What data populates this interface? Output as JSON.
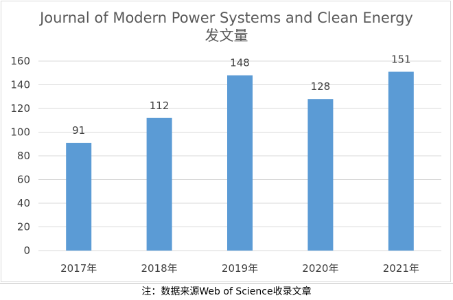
{
  "chart_data": {
    "type": "bar",
    "title": "Journal of Modern Power Systems and Clean Energy",
    "subtitle": "发文量",
    "categories": [
      "2017年",
      "2018年",
      "2019年",
      "2020年",
      "2021年"
    ],
    "values": [
      91,
      112,
      148,
      128,
      151
    ],
    "ylim": [
      0,
      160
    ],
    "yticks": [
      0,
      20,
      40,
      60,
      80,
      100,
      120,
      140,
      160
    ],
    "grid": true,
    "bar_color": "#5b9bd5",
    "gridline_color": "#d9d9d9"
  },
  "note": "注：数据来源Web of Science收录文章"
}
